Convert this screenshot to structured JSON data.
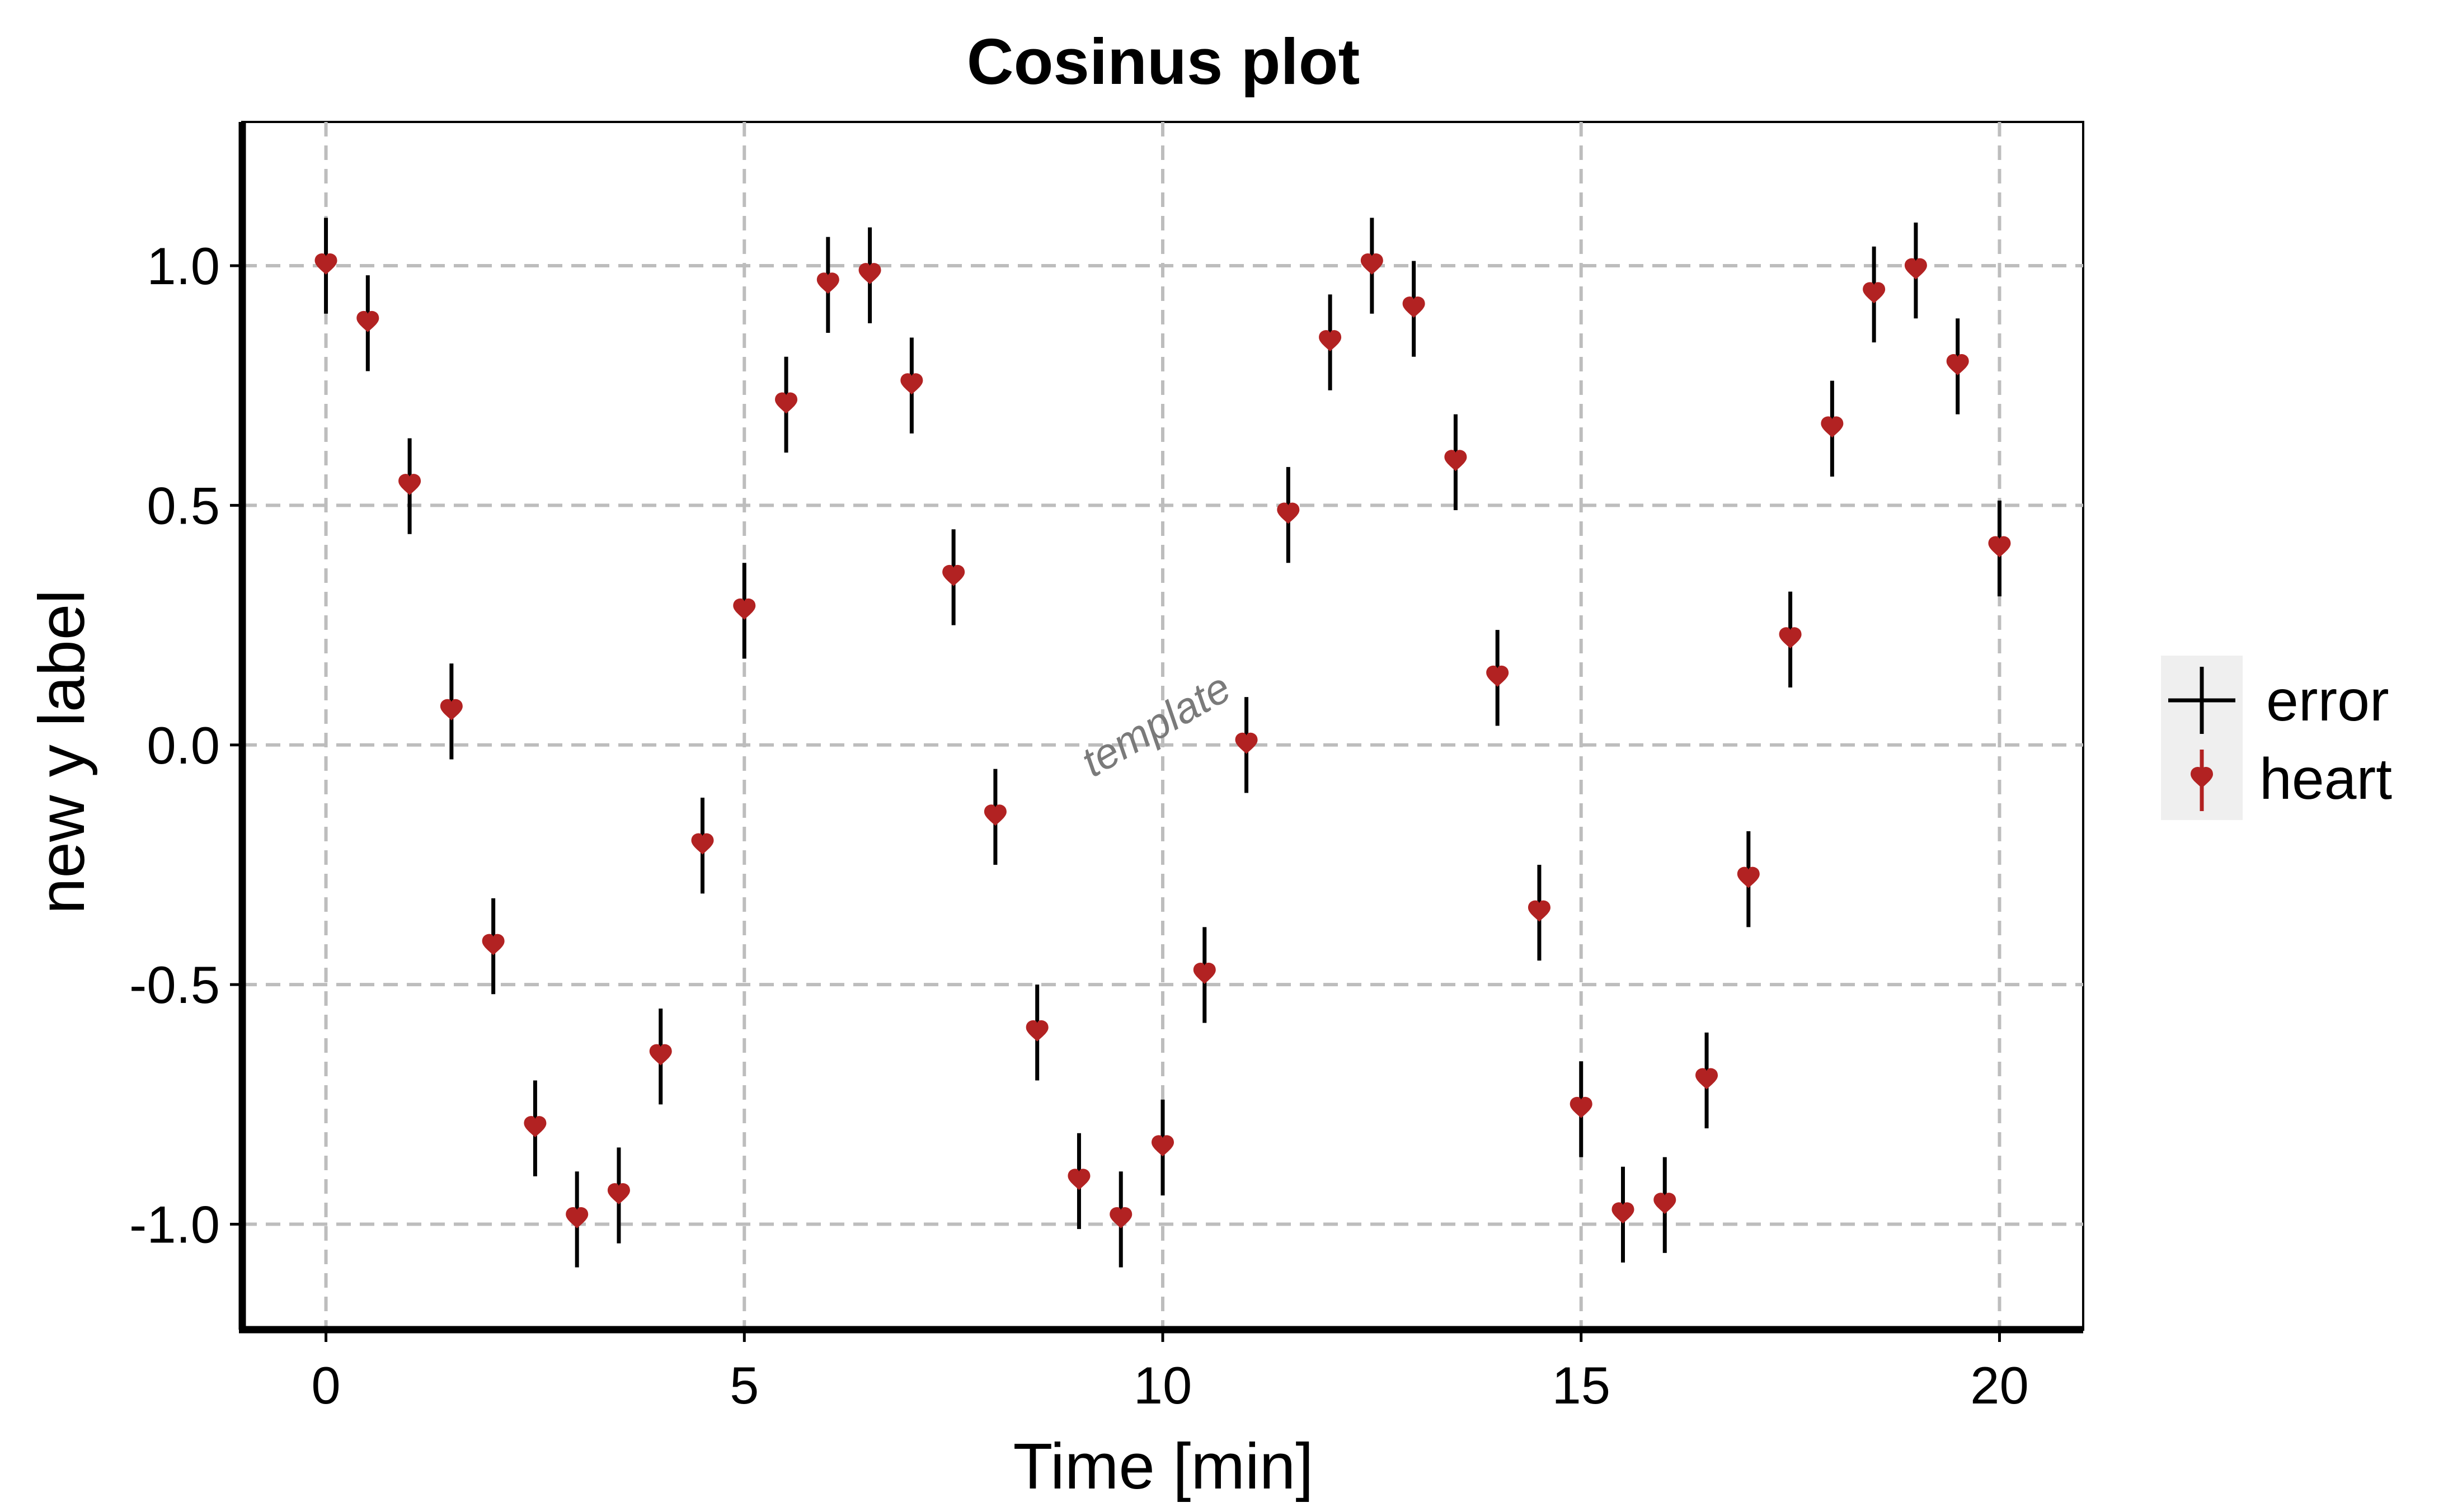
{
  "chart_data": {
    "type": "scatter",
    "title": "Cosinus plot",
    "xlabel": "Time [min]",
    "ylabel": "new y label",
    "xlim": [
      -1,
      21
    ],
    "ylim": [
      -1.22,
      1.3
    ],
    "xticks": [
      0,
      5,
      10,
      15,
      20
    ],
    "xtick_labels": [
      "0",
      "5",
      "10",
      "15",
      "20"
    ],
    "yticks": [
      1.0,
      0.5,
      0.0,
      -0.5,
      -1.0
    ],
    "ytick_labels": [
      "1.0",
      "0.5",
      "0.0",
      "-0.5",
      "-1.0"
    ],
    "grid": true,
    "legend_position": "right",
    "legend": [
      {
        "label": "error",
        "kind": "error-bar"
      },
      {
        "label": "heart",
        "kind": "marker"
      }
    ],
    "annotation": "template",
    "error_half_width": 0.1,
    "colors": {
      "marker": "#b22222",
      "error": "#000000",
      "grid": "#bdbdbd",
      "legend_bg": "#efefef"
    },
    "series": [
      {
        "name": "heart",
        "x": [
          0,
          0.5,
          1,
          1.5,
          2,
          2.5,
          3,
          3.5,
          4,
          4.5,
          5,
          5.5,
          6,
          6.5,
          7,
          7.5,
          8,
          8.5,
          9,
          9.5,
          10,
          10.5,
          11,
          11.5,
          12,
          12.5,
          13,
          13.5,
          14,
          14.5,
          15,
          15.5,
          16,
          16.5,
          17,
          17.5,
          18,
          18.5,
          19,
          19.5,
          20
        ],
        "y": [
          1.0,
          0.88,
          0.54,
          0.07,
          -0.42,
          -0.8,
          -0.99,
          -0.94,
          -0.65,
          -0.21,
          0.28,
          0.71,
          0.96,
          0.98,
          0.75,
          0.35,
          -0.15,
          -0.6,
          -0.91,
          -0.99,
          -0.84,
          -0.48,
          0.0,
          0.48,
          0.84,
          1.0,
          0.91,
          0.59,
          0.14,
          -0.35,
          -0.76,
          -0.98,
          -0.96,
          -0.7,
          -0.28,
          0.22,
          0.66,
          0.94,
          0.99,
          0.79,
          0.41
        ]
      }
    ]
  }
}
